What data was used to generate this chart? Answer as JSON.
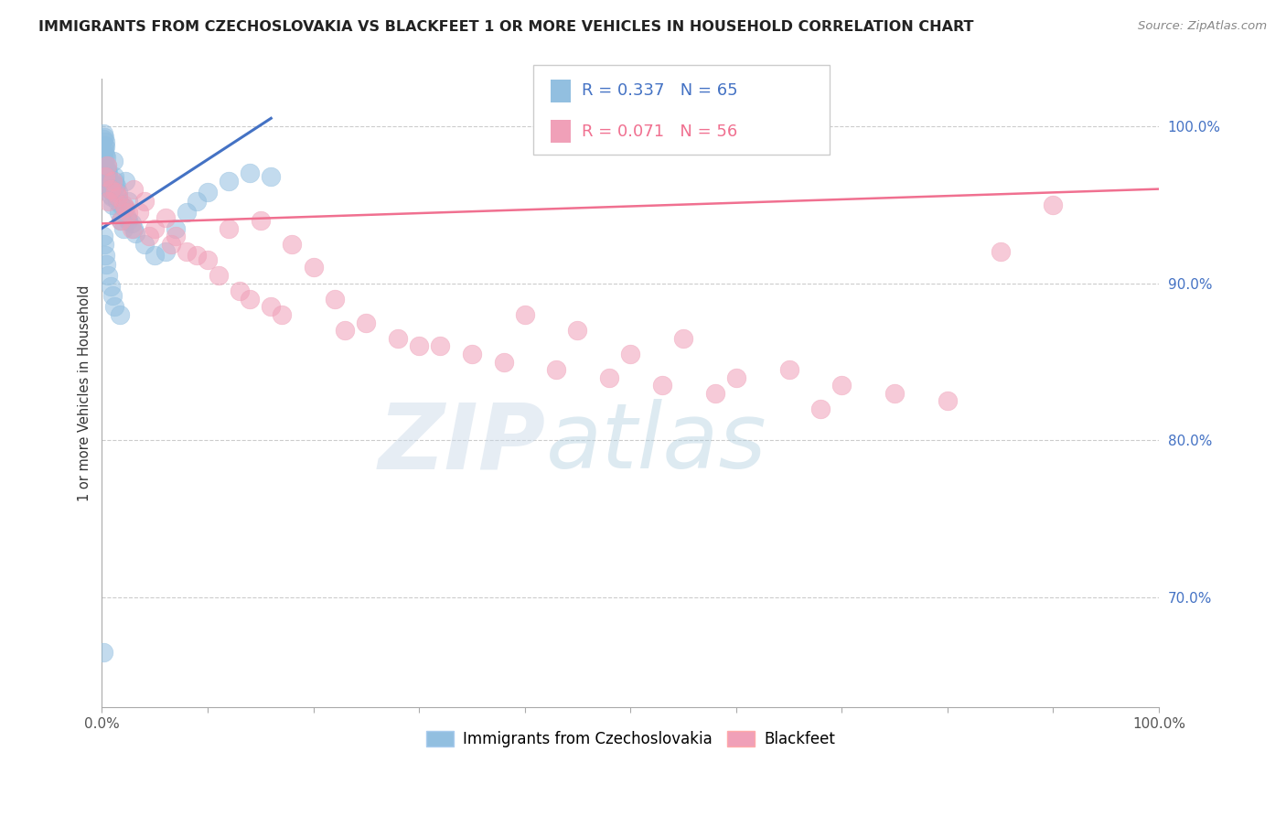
{
  "title": "IMMIGRANTS FROM CZECHOSLOVAKIA VS BLACKFEET 1 OR MORE VEHICLES IN HOUSEHOLD CORRELATION CHART",
  "source": "Source: ZipAtlas.com",
  "ylabel": "1 or more Vehicles in Household",
  "xlim": [
    0.0,
    100.0
  ],
  "ylim": [
    63.0,
    103.0
  ],
  "yticks": [
    70.0,
    80.0,
    90.0,
    100.0
  ],
  "ytick_labels": [
    "70.0%",
    "80.0%",
    "90.0%",
    "100.0%"
  ],
  "blue_R": 0.337,
  "blue_N": 65,
  "pink_R": 0.071,
  "pink_N": 56,
  "blue_color": "#92bfe0",
  "pink_color": "#f0a0b8",
  "blue_line_color": "#4472c4",
  "pink_line_color": "#f07090",
  "legend_label_blue": "Immigrants from Czechoslovakia",
  "legend_label_pink": "Blackfeet",
  "watermark_zip": "ZIP",
  "watermark_atlas": "atlas",
  "blue_scatter_x": [
    0.1,
    0.15,
    0.2,
    0.25,
    0.3,
    0.35,
    0.4,
    0.5,
    0.6,
    0.7,
    0.8,
    0.9,
    1.0,
    1.1,
    1.2,
    1.3,
    1.5,
    1.6,
    1.8,
    2.0,
    2.2,
    2.5,
    0.2,
    0.3,
    0.5,
    0.7,
    1.0,
    1.4,
    0.15,
    0.25,
    0.45,
    0.55,
    0.65,
    0.75,
    0.85,
    1.15,
    1.35,
    1.55,
    1.75,
    2.1,
    2.4,
    2.8,
    3.2,
    4.0,
    5.0,
    6.0,
    7.0,
    8.0,
    9.0,
    10.0,
    12.0,
    14.0,
    16.0,
    2.5,
    3.0,
    0.1,
    0.2,
    0.3,
    0.4,
    0.6,
    0.8,
    1.0,
    1.2,
    1.7,
    0.15
  ],
  "blue_scatter_y": [
    99.5,
    99.2,
    98.8,
    98.5,
    98.2,
    99.0,
    98.0,
    97.5,
    97.0,
    96.5,
    96.0,
    95.5,
    95.0,
    97.8,
    96.8,
    96.2,
    95.8,
    94.5,
    94.0,
    93.5,
    96.5,
    95.2,
    99.3,
    98.7,
    97.2,
    96.2,
    95.8,
    95.2,
    98.0,
    97.6,
    97.2,
    96.8,
    96.4,
    96.0,
    95.6,
    96.5,
    96.2,
    95.5,
    95.0,
    94.8,
    94.2,
    93.8,
    93.2,
    92.5,
    91.8,
    92.0,
    93.5,
    94.5,
    95.2,
    95.8,
    96.5,
    97.0,
    96.8,
    94.0,
    93.5,
    93.0,
    92.5,
    91.8,
    91.2,
    90.5,
    89.8,
    89.2,
    88.5,
    88.0,
    66.5
  ],
  "pink_scatter_x": [
    0.5,
    1.0,
    1.5,
    2.0,
    2.5,
    3.0,
    4.0,
    5.0,
    6.0,
    7.0,
    8.0,
    10.0,
    12.0,
    15.0,
    18.0,
    20.0,
    0.8,
    1.3,
    2.2,
    3.5,
    0.3,
    0.6,
    1.8,
    2.8,
    4.5,
    6.5,
    9.0,
    13.0,
    16.0,
    22.0,
    25.0,
    30.0,
    35.0,
    40.0,
    45.0,
    55.0,
    65.0,
    75.0,
    85.0,
    90.0,
    50.0,
    60.0,
    70.0,
    80.0,
    11.0,
    14.0,
    17.0,
    23.0,
    28.0,
    32.0,
    38.0,
    43.0,
    48.0,
    53.0,
    58.0,
    68.0
  ],
  "pink_scatter_y": [
    97.5,
    96.5,
    95.5,
    95.0,
    94.5,
    96.0,
    95.2,
    93.5,
    94.2,
    93.0,
    92.0,
    91.5,
    93.5,
    94.0,
    92.5,
    91.0,
    96.0,
    95.8,
    94.8,
    94.5,
    96.8,
    95.2,
    94.0,
    93.5,
    93.0,
    92.5,
    91.8,
    89.5,
    88.5,
    89.0,
    87.5,
    86.0,
    85.5,
    88.0,
    87.0,
    86.5,
    84.5,
    83.0,
    92.0,
    95.0,
    85.5,
    84.0,
    83.5,
    82.5,
    90.5,
    89.0,
    88.0,
    87.0,
    86.5,
    86.0,
    85.0,
    84.5,
    84.0,
    83.5,
    83.0,
    82.0
  ],
  "blue_trend_x0": 0.0,
  "blue_trend_x1": 16.0,
  "blue_trend_y0": 93.5,
  "blue_trend_y1": 100.5,
  "pink_trend_x0": 0.0,
  "pink_trend_x1": 100.0,
  "pink_trend_y0": 93.8,
  "pink_trend_y1": 96.0
}
